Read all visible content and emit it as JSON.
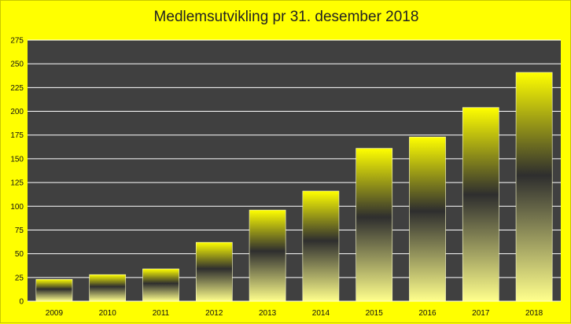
{
  "chart_data": {
    "type": "bar",
    "title": "Medlemsutvikling pr 31. desember 2018",
    "xlabel": "",
    "ylabel": "",
    "categories": [
      "2009",
      "2010",
      "2011",
      "2012",
      "2013",
      "2014",
      "2015",
      "2016",
      "2017",
      "2018"
    ],
    "values": [
      23,
      28,
      34,
      62,
      96,
      116,
      161,
      173,
      204,
      241
    ],
    "ylim": [
      0,
      275
    ],
    "yticks": [
      0,
      25,
      50,
      75,
      100,
      125,
      150,
      175,
      200,
      225,
      250,
      275
    ],
    "grid": true,
    "legend": "none"
  },
  "colors": {
    "background": "#ffff00",
    "plot_area": "#404040",
    "gridline": "#ffffff",
    "bar_top": "#ffff00",
    "bar_mid": "#2e2e2e",
    "bar_bottom": "#ffff8c"
  }
}
